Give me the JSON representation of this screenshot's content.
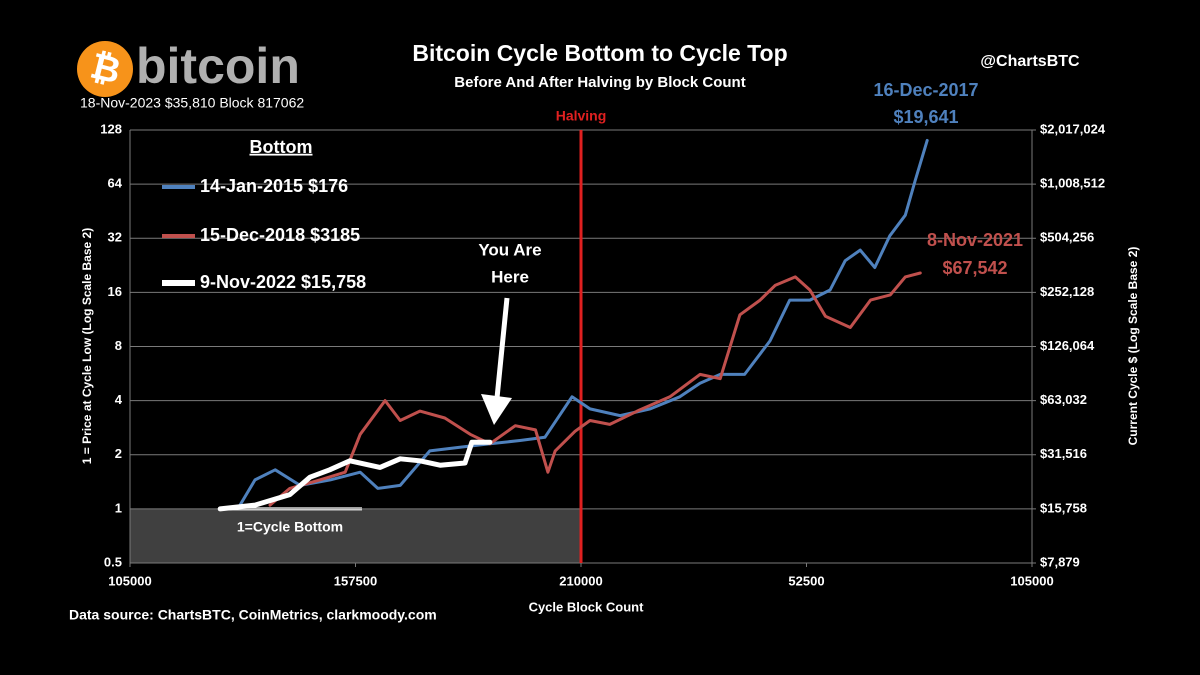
{
  "chart_data": {
    "type": "line",
    "title": "Bitcoin Cycle Bottom to Cycle Top",
    "subtitle": "Before And After Halving by Block Count",
    "logo_symbol": "₿",
    "logo_text": "bitcoin",
    "header_note": "18-Nov-2023 $35,810 Block 817062",
    "credit": "@ChartsBTC",
    "source": "Data source:  ChartsBTC, CoinMetrics, clarkmoody.com",
    "x_label": "Cycle Block Count",
    "y_label": "1 = Price at Cycle Low (Log Scale Base 2)",
    "y2_label": "Current Cycle $ (Log Scale Base 2)",
    "legend_title": "Bottom",
    "log_scale": true,
    "log_base": 2,
    "grid": true,
    "xlim": [
      105000,
      315000
    ],
    "xticks": [
      105000,
      157500,
      210000,
      {
        "value": 262500,
        "label": "52500"
      },
      {
        "value": 315000,
        "label": "105000"
      }
    ],
    "ylim": [
      0.5,
      128
    ],
    "yticks": [
      0.5,
      1,
      2,
      4,
      8,
      16,
      32,
      64,
      128
    ],
    "y2lim": [
      7879,
      2017024
    ],
    "y2ticks": [
      {
        "value": 7879,
        "label": "$7,879"
      },
      {
        "value": 15758,
        "label": "$15,758"
      },
      {
        "value": 31516,
        "label": "$31,516"
      },
      {
        "value": 63032,
        "label": "$63,032"
      },
      {
        "value": 126064,
        "label": "$126,064"
      },
      {
        "value": 252128,
        "label": "$252,128"
      },
      {
        "value": 504256,
        "label": "$504,256"
      },
      {
        "value": 1008512,
        "label": "$1,008,512"
      },
      {
        "value": 2017024,
        "label": "$2,017,024"
      }
    ],
    "halving": {
      "label": "Halving",
      "x": 210000,
      "color": "#e02020"
    },
    "bottom_zone": {
      "label": "1=Cycle Bottom",
      "top": 1
    },
    "you_are_here": [
      "You Are",
      "Here"
    ],
    "annotations": [
      {
        "lines": [
          "16-Dec-2017",
          "$19,641"
        ],
        "color": "#4f81bd"
      },
      {
        "lines": [
          "8-Nov-2021",
          "$67,542"
        ],
        "color": "#c0504d"
      }
    ],
    "series": [
      {
        "name": "14-Jan-2015 $176",
        "color": "#4f81bd",
        "x": [
          130600,
          134100,
          138800,
          144600,
          151600,
          158600,
          162700,
          167900,
          174800,
          181800,
          188800,
          195800,
          201600,
          207900,
          212100,
          219100,
          226100,
          233000,
          237700,
          242400,
          248100,
          254000,
          258600,
          263300,
          268000,
          271500,
          275000,
          278400,
          281900,
          285500,
          287800,
          290600
        ],
        "values": [
          1.05,
          1.45,
          1.65,
          1.35,
          1.45,
          1.6,
          1.3,
          1.35,
          2.1,
          2.2,
          2.3,
          2.4,
          2.5,
          4.2,
          3.6,
          3.3,
          3.6,
          4.2,
          5.0,
          5.6,
          5.6,
          8.6,
          14.5,
          14.5,
          16.5,
          24,
          27.5,
          22,
          33,
          43,
          67,
          112
        ]
      },
      {
        "name": "15-Dec-2018 $3185",
        "color": "#c0504d",
        "x": [
          137600,
          142200,
          149200,
          155100,
          158600,
          164400,
          167900,
          172500,
          178300,
          184200,
          188800,
          194700,
          199400,
          202300,
          204000,
          208600,
          212100,
          216700,
          223700,
          230700,
          237700,
          242400,
          247000,
          251700,
          255200,
          259900,
          263300,
          266900,
          272700,
          277400,
          282000,
          285500,
          289000
        ],
        "values": [
          1.05,
          1.3,
          1.45,
          1.6,
          2.6,
          4.0,
          3.1,
          3.5,
          3.2,
          2.6,
          2.3,
          2.9,
          2.75,
          1.6,
          2.1,
          2.7,
          3.1,
          2.95,
          3.55,
          4.2,
          5.6,
          5.3,
          12,
          14.5,
          17.5,
          19.5,
          16.5,
          11.8,
          10.2,
          14.5,
          15.5,
          19.5,
          20.5
        ]
      },
      {
        "name": "9-Nov-2022 $15,758",
        "color": "#ffffff",
        "x": [
          126000,
          134100,
          142200,
          146900,
          151500,
          156200,
          163200,
          167900,
          172500,
          177200,
          183000,
          184600,
          188800
        ],
        "values": [
          1.0,
          1.05,
          1.2,
          1.5,
          1.65,
          1.85,
          1.7,
          1.9,
          1.85,
          1.75,
          1.8,
          2.35,
          2.35
        ]
      }
    ]
  }
}
